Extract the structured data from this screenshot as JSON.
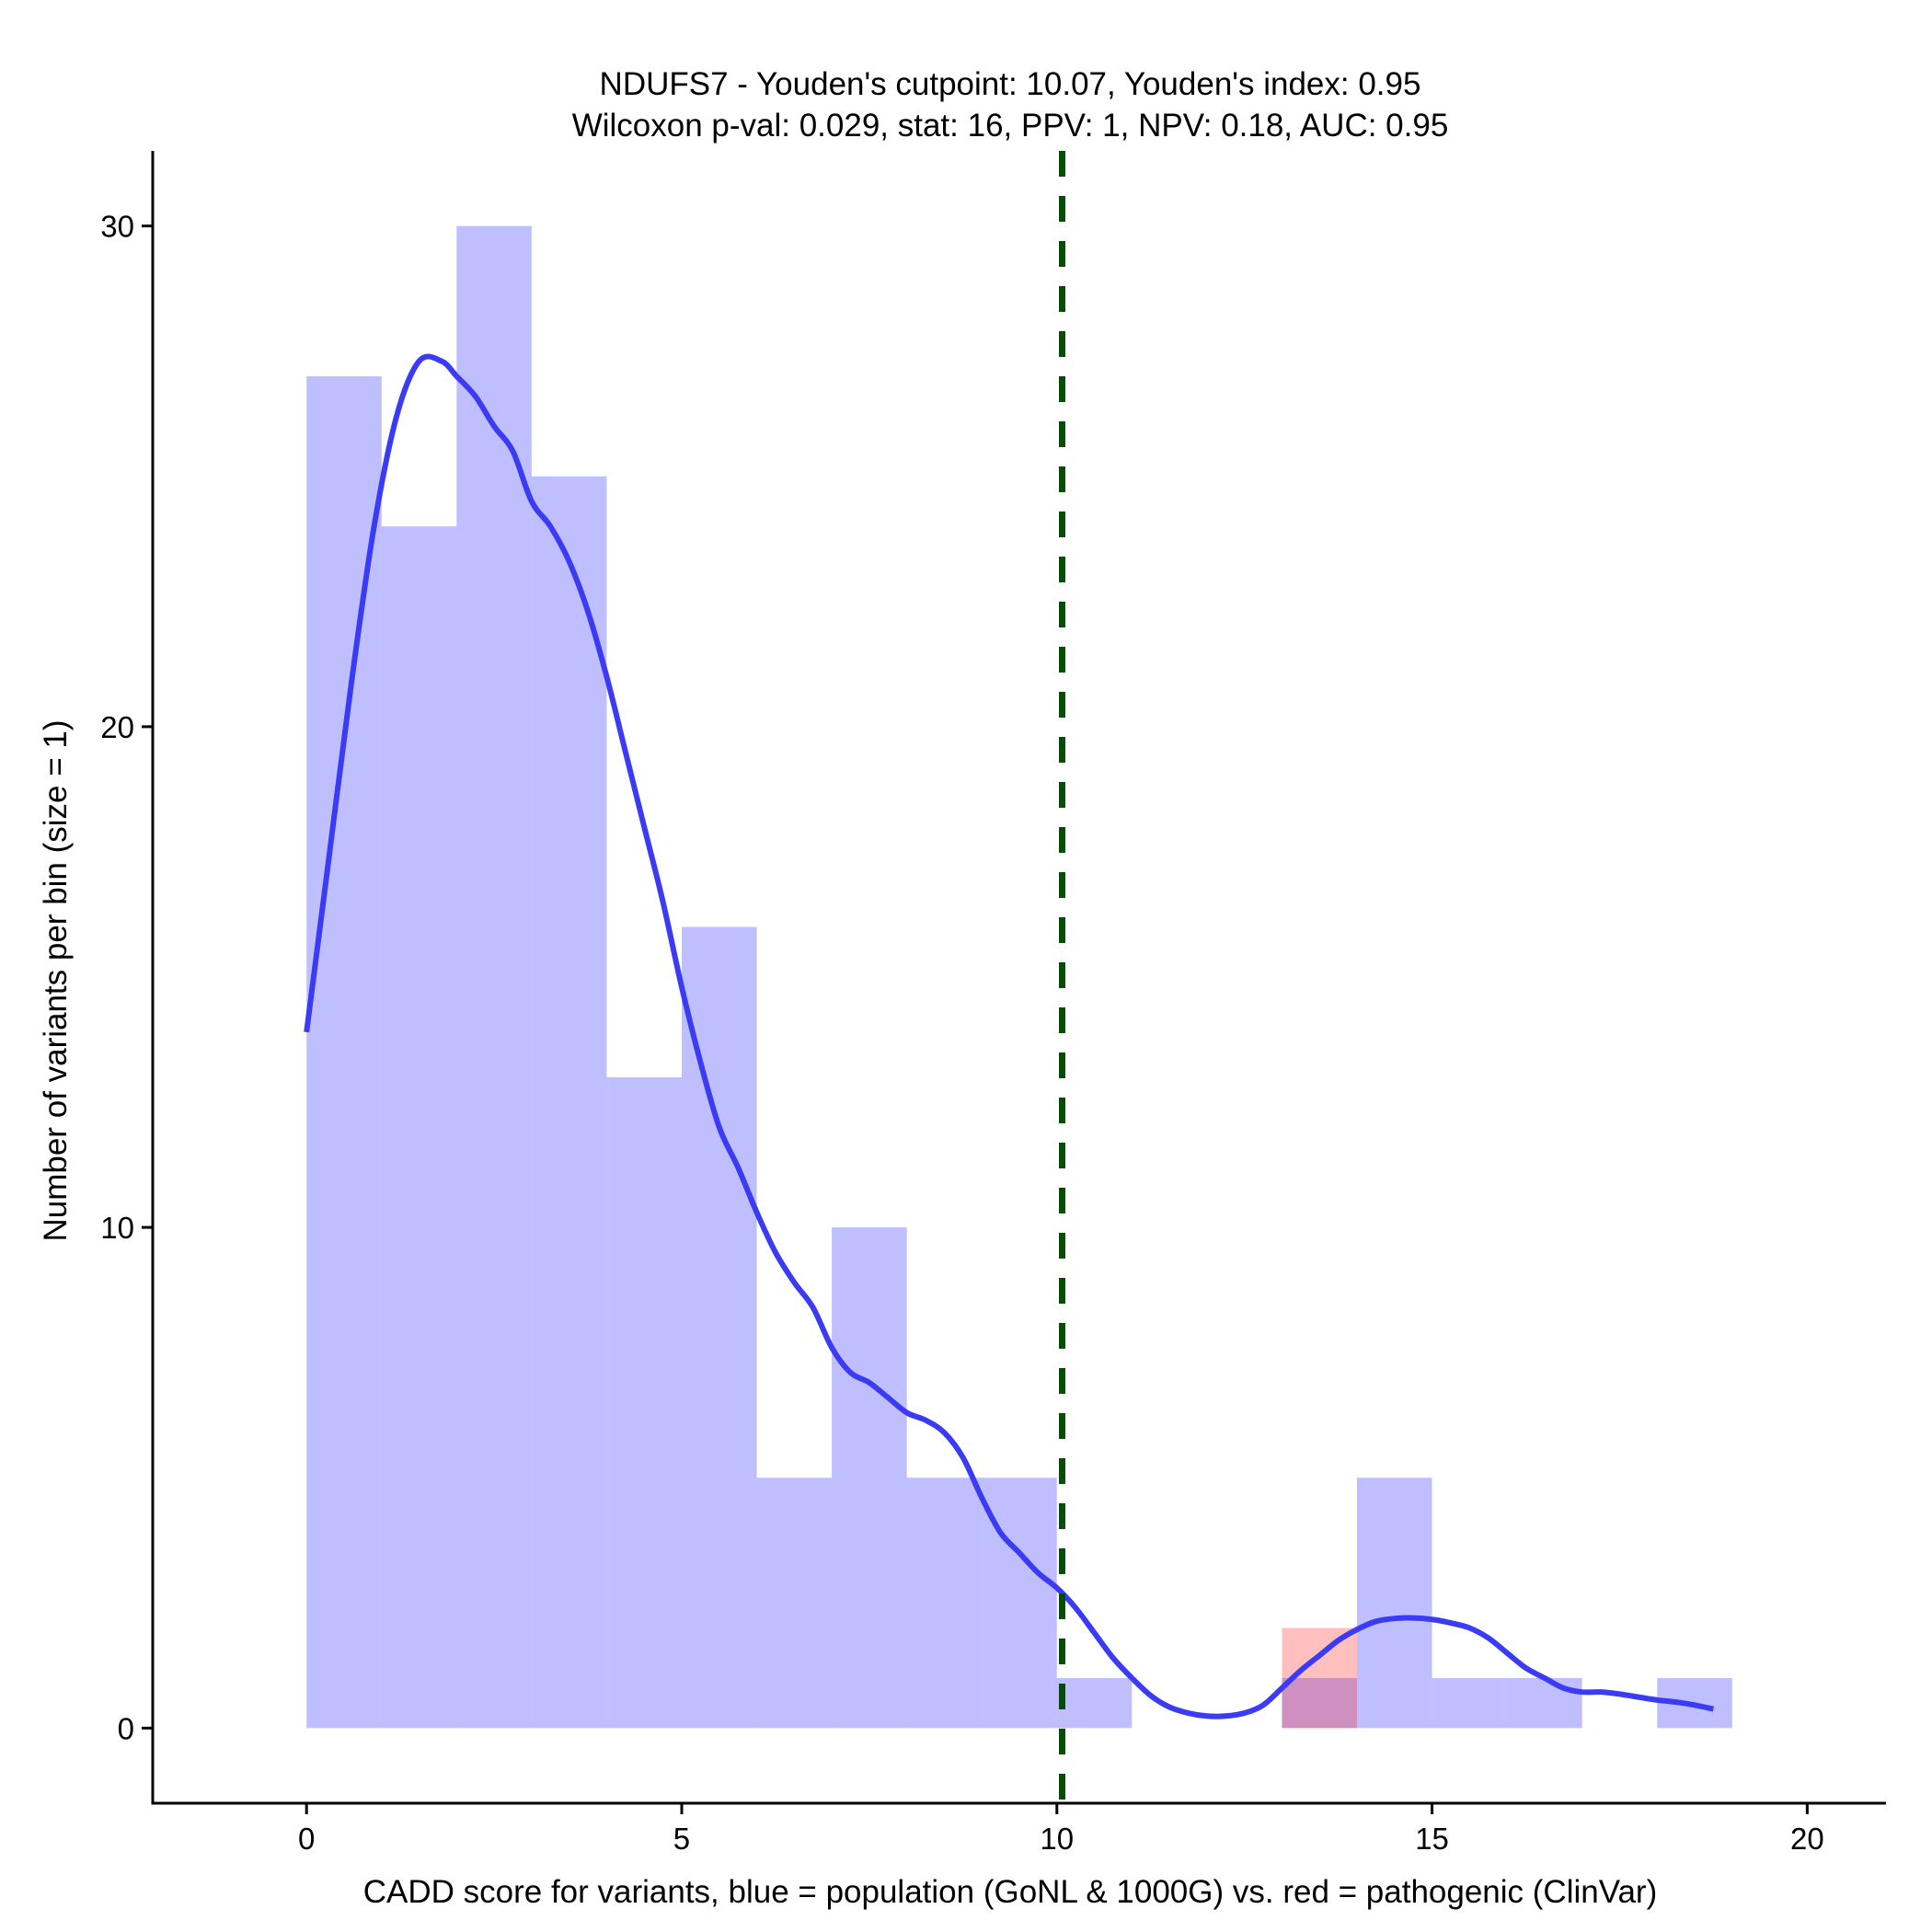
{
  "chart_data": {
    "type": "histogram",
    "title": "NDUFS7 - Youden's cutpoint: 10.07, Youden's index: 0.95",
    "subtitle": "Wilcoxon p-val: 0.029, stat: 16, PPV: 1, NPV: 0.18, AUC: 0.95",
    "xlabel": "CADD score for variants, blue = population (GoNL & 1000G) vs. red = pathogenic (ClinVar)",
    "ylabel": "Number of variants per bin (size = 1)",
    "xlim": [
      -2.05,
      21.05
    ],
    "ylim": [
      -1.5,
      31.5
    ],
    "x_ticks": [
      0,
      5,
      10,
      15,
      20
    ],
    "y_ticks": [
      0,
      10,
      20,
      30
    ],
    "grid": false,
    "cutpoint": 10.07,
    "colors": {
      "population": "#0000ff",
      "pathogenic": "#ff0000",
      "density": "#3b3bf5",
      "cutpoint": "#005000",
      "axis": "#000000"
    },
    "series": [
      {
        "name": "population (GoNL & 1000G)",
        "bins": [
          {
            "x0": 0,
            "x1": 1,
            "count": 27
          },
          {
            "x0": 1,
            "x1": 2,
            "count": 24
          },
          {
            "x0": 2,
            "x1": 3,
            "count": 30
          },
          {
            "x0": 3,
            "x1": 4,
            "count": 25
          },
          {
            "x0": 4,
            "x1": 5,
            "count": 13
          },
          {
            "x0": 5,
            "x1": 6,
            "count": 16
          },
          {
            "x0": 6,
            "x1": 7,
            "count": 5
          },
          {
            "x0": 7,
            "x1": 8,
            "count": 10
          },
          {
            "x0": 8,
            "x1": 9,
            "count": 5
          },
          {
            "x0": 9,
            "x1": 10,
            "count": 5
          },
          {
            "x0": 10,
            "x1": 11,
            "count": 1
          },
          {
            "x0": 13,
            "x1": 14,
            "count": 1
          },
          {
            "x0": 14,
            "x1": 15,
            "count": 5
          },
          {
            "x0": 15,
            "x1": 16,
            "count": 1
          },
          {
            "x0": 16,
            "x1": 17,
            "count": 1
          },
          {
            "x0": 18,
            "x1": 19,
            "count": 1
          }
        ]
      },
      {
        "name": "pathogenic (ClinVar)",
        "bins": [
          {
            "x0": 13,
            "x1": 14,
            "count": 2
          }
        ]
      }
    ],
    "density_curve": {
      "name": "population density",
      "points": [
        [
          0.0,
          13.9
        ],
        [
          0.3,
          17.4
        ],
        [
          0.6,
          20.9
        ],
        [
          0.9,
          24.0
        ],
        [
          1.2,
          26.2
        ],
        [
          1.5,
          27.3
        ],
        [
          1.8,
          27.3
        ],
        [
          2.0,
          27.0
        ],
        [
          2.25,
          26.6
        ],
        [
          2.5,
          26.0
        ],
        [
          2.75,
          25.5
        ],
        [
          3.0,
          24.5
        ],
        [
          3.25,
          24.0
        ],
        [
          3.5,
          23.3
        ],
        [
          3.75,
          22.3
        ],
        [
          4.0,
          21.0
        ],
        [
          4.25,
          19.5
        ],
        [
          4.5,
          18.0
        ],
        [
          4.75,
          16.5
        ],
        [
          5.0,
          14.8
        ],
        [
          5.25,
          13.3
        ],
        [
          5.5,
          12.0
        ],
        [
          5.75,
          11.2
        ],
        [
          6.0,
          10.3
        ],
        [
          6.25,
          9.5
        ],
        [
          6.5,
          8.9
        ],
        [
          6.75,
          8.4
        ],
        [
          7.0,
          7.6
        ],
        [
          7.25,
          7.1
        ],
        [
          7.5,
          6.9
        ],
        [
          7.75,
          6.6
        ],
        [
          8.0,
          6.3
        ],
        [
          8.25,
          6.15
        ],
        [
          8.5,
          5.9
        ],
        [
          8.75,
          5.4
        ],
        [
          9.0,
          4.6
        ],
        [
          9.25,
          3.9
        ],
        [
          9.5,
          3.5
        ],
        [
          9.75,
          3.1
        ],
        [
          10.0,
          2.8
        ],
        [
          10.25,
          2.4
        ],
        [
          10.5,
          1.9
        ],
        [
          10.75,
          1.4
        ],
        [
          11.0,
          1.0
        ],
        [
          11.25,
          0.65
        ],
        [
          11.5,
          0.42
        ],
        [
          11.75,
          0.3
        ],
        [
          12.0,
          0.24
        ],
        [
          12.25,
          0.24
        ],
        [
          12.5,
          0.3
        ],
        [
          12.75,
          0.46
        ],
        [
          13.0,
          0.8
        ],
        [
          13.25,
          1.15
        ],
        [
          13.5,
          1.45
        ],
        [
          13.75,
          1.75
        ],
        [
          14.0,
          1.97
        ],
        [
          14.25,
          2.13
        ],
        [
          14.5,
          2.19
        ],
        [
          14.75,
          2.2
        ],
        [
          15.0,
          2.17
        ],
        [
          15.25,
          2.1
        ],
        [
          15.5,
          2.0
        ],
        [
          15.75,
          1.8
        ],
        [
          16.0,
          1.5
        ],
        [
          16.25,
          1.2
        ],
        [
          16.5,
          1.0
        ],
        [
          16.75,
          0.8
        ],
        [
          17.0,
          0.72
        ],
        [
          17.25,
          0.72
        ],
        [
          17.5,
          0.68
        ],
        [
          17.75,
          0.62
        ],
        [
          18.0,
          0.56
        ],
        [
          18.25,
          0.52
        ],
        [
          18.5,
          0.46
        ],
        [
          18.75,
          0.38
        ]
      ]
    }
  }
}
